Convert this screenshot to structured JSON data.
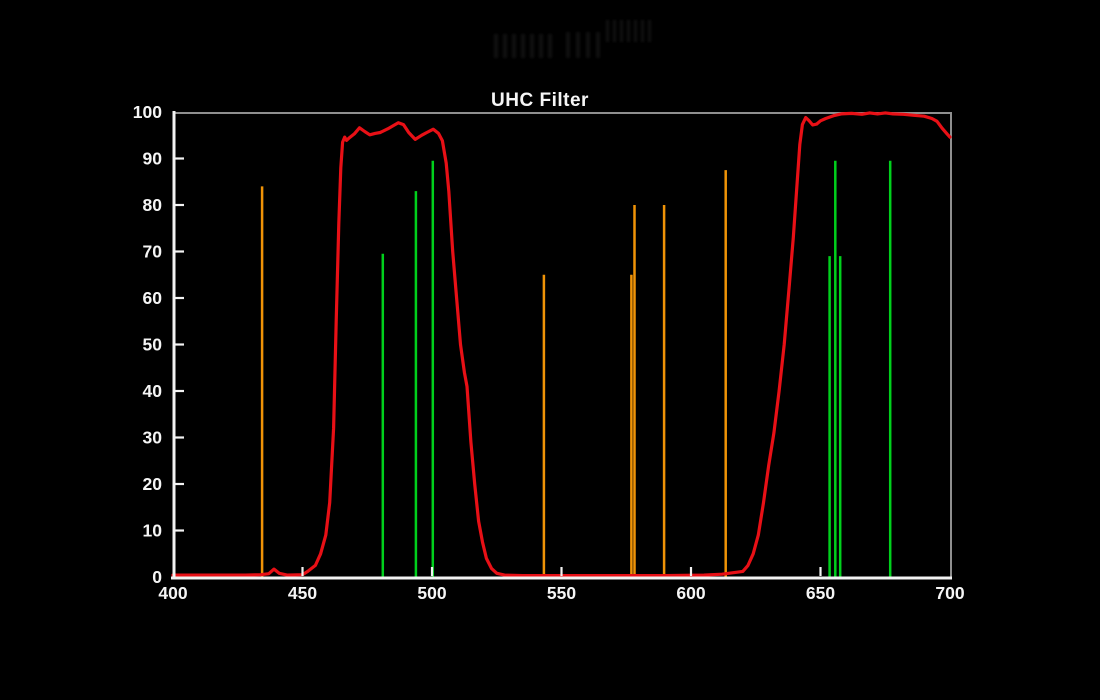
{
  "title": "UHC Filter",
  "watermark": {
    "legible": false
  },
  "colors": {
    "background": "#000000",
    "axis": "#f2f2f2",
    "frame": "#8f8f8f",
    "label": "#f5f5f5",
    "curve": "#e81016",
    "nebula_lines": "#00d01c",
    "pollution_lines": "#ef9307"
  },
  "chart_data": {
    "type": "line",
    "title": "UHC Filter",
    "xlabel": "",
    "ylabel": "",
    "xlim": [
      400,
      700
    ],
    "ylim": [
      0,
      100
    ],
    "x_ticks": [
      400,
      450,
      500,
      550,
      600,
      650,
      700
    ],
    "y_ticks": [
      0,
      10,
      20,
      30,
      40,
      50,
      60,
      70,
      80,
      90,
      100
    ],
    "grid": false,
    "legend": "none",
    "series": [
      {
        "name": "filter-transmission-curve",
        "kind": "line",
        "color_key": "curve",
        "points": [
          [
            400,
            0.4
          ],
          [
            428,
            0.4
          ],
          [
            434,
            0.5
          ],
          [
            437,
            0.7
          ],
          [
            439,
            1.7
          ],
          [
            441,
            0.8
          ],
          [
            444,
            0.4
          ],
          [
            450,
            0.5
          ],
          [
            452,
            1.2
          ],
          [
            455,
            2.5
          ],
          [
            457,
            5
          ],
          [
            459,
            9
          ],
          [
            460.5,
            16
          ],
          [
            462,
            32
          ],
          [
            463,
            55
          ],
          [
            464,
            76
          ],
          [
            464.8,
            88
          ],
          [
            465.5,
            93.5
          ],
          [
            466.3,
            94.6
          ],
          [
            467,
            93.9
          ],
          [
            468,
            94.4
          ],
          [
            470,
            95.3
          ],
          [
            472,
            96.6
          ],
          [
            474,
            95.8
          ],
          [
            476,
            95.1
          ],
          [
            478,
            95.4
          ],
          [
            480,
            95.6
          ],
          [
            483,
            96.4
          ],
          [
            487,
            97.7
          ],
          [
            489,
            97.3
          ],
          [
            491,
            95.6
          ],
          [
            493.5,
            94.1
          ],
          [
            496,
            95.0
          ],
          [
            498,
            95.6
          ],
          [
            500.5,
            96.3
          ],
          [
            502.5,
            95.4
          ],
          [
            504,
            93.8
          ],
          [
            505.5,
            89
          ],
          [
            506.5,
            83
          ],
          [
            508,
            70
          ],
          [
            509.5,
            60
          ],
          [
            511,
            50
          ],
          [
            512.5,
            44
          ],
          [
            513.5,
            41
          ],
          [
            515,
            29
          ],
          [
            516.5,
            20
          ],
          [
            518,
            12
          ],
          [
            519.5,
            7.5
          ],
          [
            521,
            4
          ],
          [
            523,
            1.8
          ],
          [
            525,
            0.8
          ],
          [
            528,
            0.4
          ],
          [
            535,
            0.3
          ],
          [
            560,
            0.3
          ],
          [
            590,
            0.3
          ],
          [
            605,
            0.4
          ],
          [
            612,
            0.6
          ],
          [
            616,
            0.9
          ],
          [
            620,
            1.2
          ],
          [
            622,
            2.5
          ],
          [
            624,
            5
          ],
          [
            626,
            9
          ],
          [
            628,
            16
          ],
          [
            630,
            24
          ],
          [
            632,
            31
          ],
          [
            634,
            40
          ],
          [
            636,
            50
          ],
          [
            638,
            63
          ],
          [
            639.5,
            73
          ],
          [
            641,
            85
          ],
          [
            642,
            93
          ],
          [
            643,
            97.3
          ],
          [
            644.3,
            98.8
          ],
          [
            645.5,
            98.2
          ],
          [
            647,
            97.2
          ],
          [
            648.5,
            97.4
          ],
          [
            650,
            98.1
          ],
          [
            652,
            98.6
          ],
          [
            655,
            99.2
          ],
          [
            658,
            99.6
          ],
          [
            662,
            99.7
          ],
          [
            666,
            99.5
          ],
          [
            669,
            99.8
          ],
          [
            672,
            99.6
          ],
          [
            675,
            99.8
          ],
          [
            678,
            99.6
          ],
          [
            682,
            99.5
          ],
          [
            686,
            99.3
          ],
          [
            690,
            99.1
          ],
          [
            693,
            98.6
          ],
          [
            695,
            98
          ],
          [
            697,
            96.5
          ],
          [
            699,
            95.2
          ],
          [
            700,
            94.6
          ]
        ]
      },
      {
        "name": "nebula-emission-lines",
        "kind": "vlines",
        "color_key": "nebula_lines",
        "lines": [
          {
            "nm": 481.0,
            "height": 69.5
          },
          {
            "nm": 493.8,
            "height": 83.0
          },
          {
            "nm": 500.3,
            "height": 89.5
          },
          {
            "nm": 653.5,
            "height": 69.0
          },
          {
            "nm": 655.7,
            "height": 89.5
          },
          {
            "nm": 657.6,
            "height": 69.0
          },
          {
            "nm": 676.9,
            "height": 89.5
          }
        ]
      },
      {
        "name": "light-pollution-emission-lines",
        "kind": "vlines",
        "color_key": "pollution_lines",
        "lines": [
          {
            "nm": 434.4,
            "height": 84.0
          },
          {
            "nm": 543.2,
            "height": 65.0
          },
          {
            "nm": 577.0,
            "height": 65.0
          },
          {
            "nm": 578.2,
            "height": 80.0
          },
          {
            "nm": 589.6,
            "height": 80.0
          },
          {
            "nm": 613.4,
            "height": 87.5
          }
        ]
      }
    ]
  }
}
